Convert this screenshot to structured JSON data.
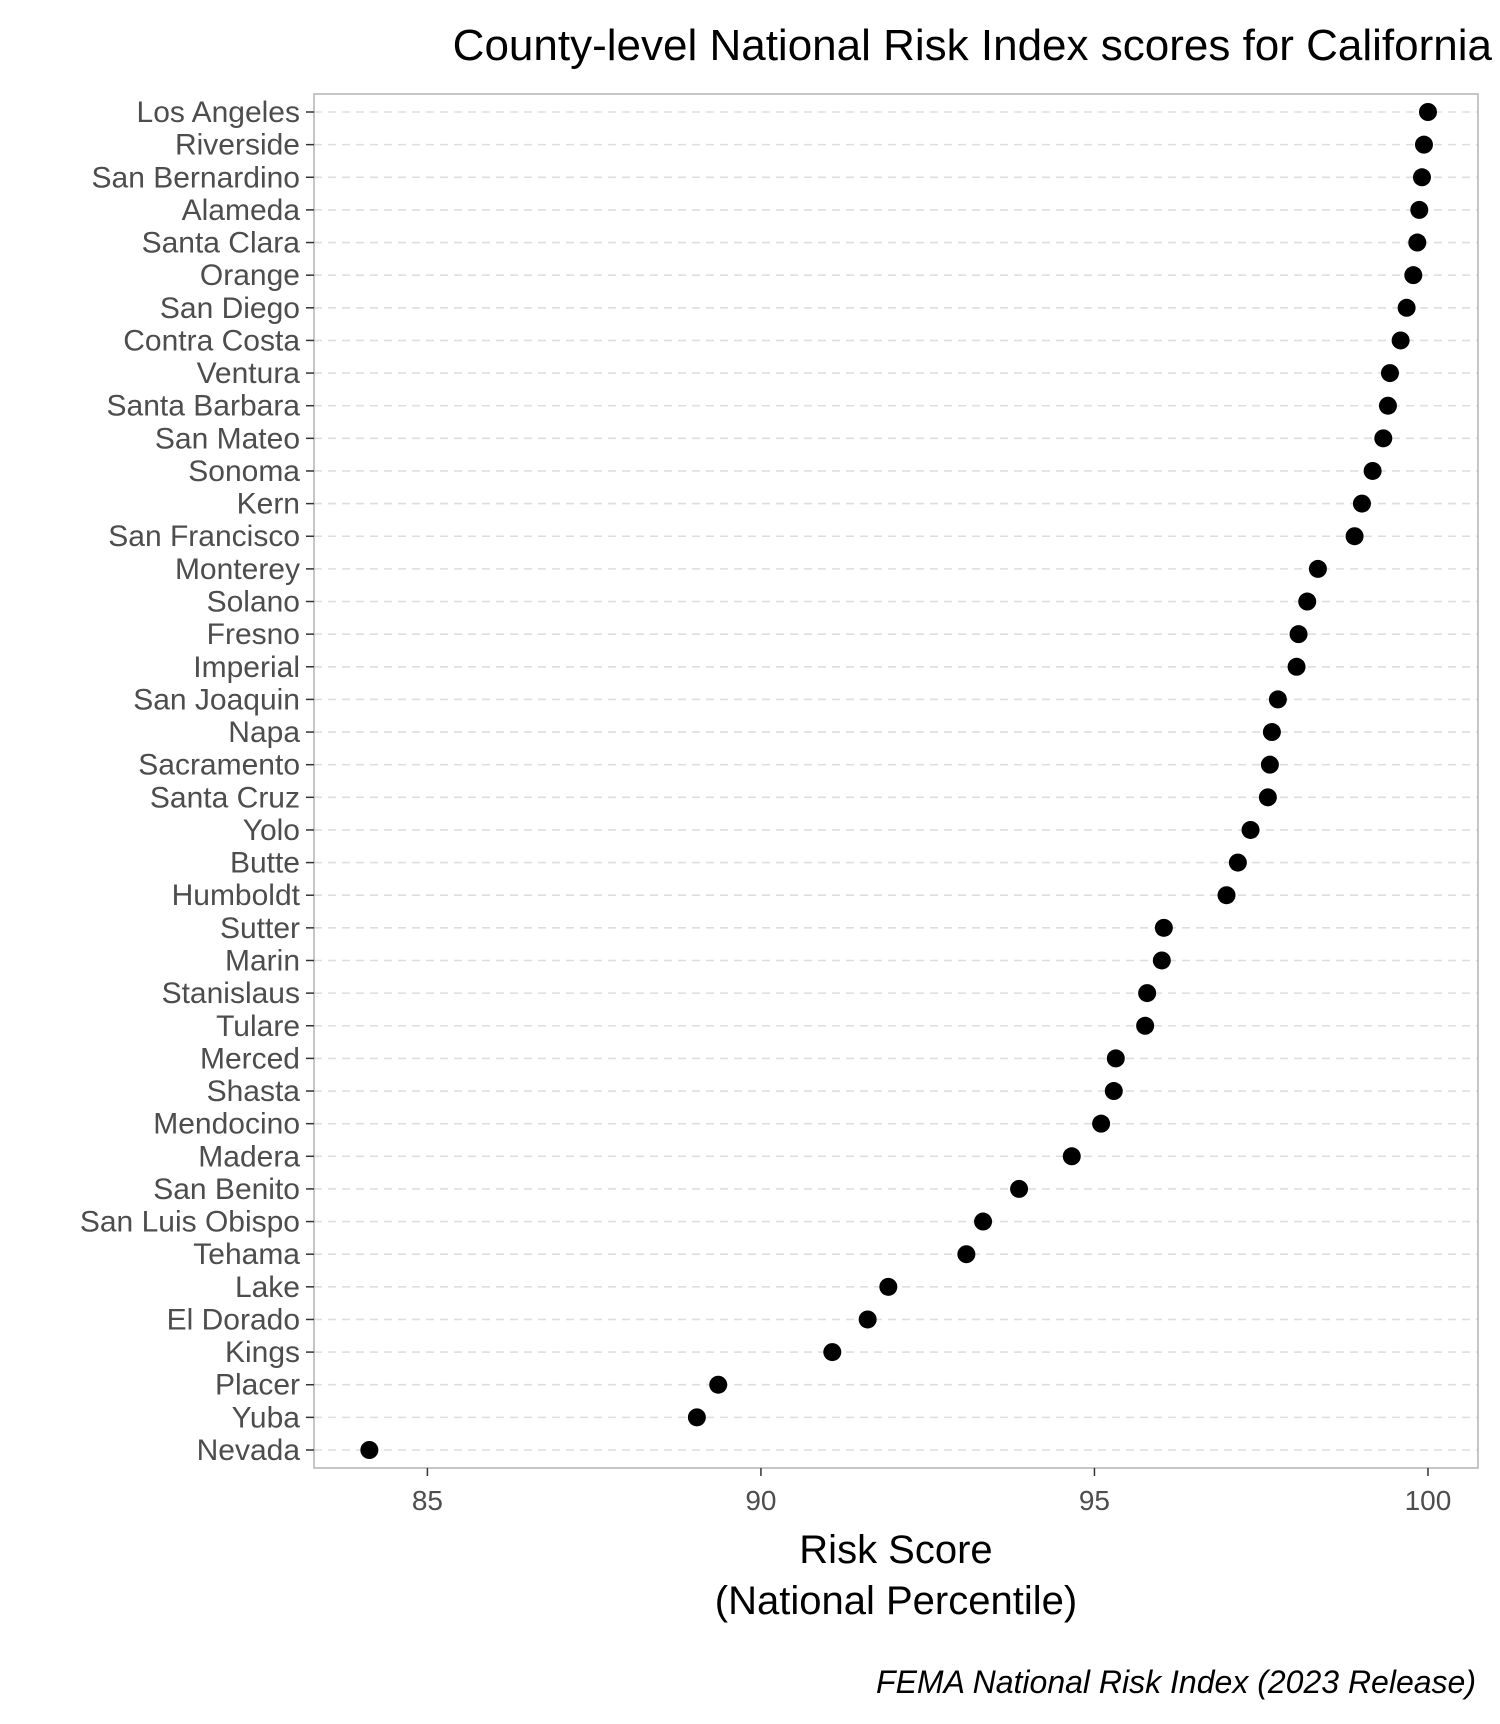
{
  "chart_data": {
    "type": "scatter",
    "title": "County-level National Risk Index scores for California",
    "xlabel_line1": "Risk Score",
    "xlabel_line2": "(National Percentile)",
    "caption": "FEMA National Risk Index (2023 Release)",
    "xlim": [
      83.3,
      100.75
    ],
    "xticks": [
      85,
      90,
      95,
      100
    ],
    "grid": "horizontal dashed",
    "colors": {
      "point": "#000000",
      "panel_border": "#b3b3b3",
      "grid": "#dedede"
    },
    "points": [
      {
        "county": "Los Angeles",
        "value": 100.0
      },
      {
        "county": "Riverside",
        "value": 99.94
      },
      {
        "county": "San Bernardino",
        "value": 99.91
      },
      {
        "county": "Alameda",
        "value": 99.87
      },
      {
        "county": "Santa Clara",
        "value": 99.84
      },
      {
        "county": "Orange",
        "value": 99.78
      },
      {
        "county": "San Diego",
        "value": 99.68
      },
      {
        "county": "Contra Costa",
        "value": 99.59
      },
      {
        "county": "Ventura",
        "value": 99.43
      },
      {
        "county": "Santa Barbara",
        "value": 99.4
      },
      {
        "county": "San Mateo",
        "value": 99.33
      },
      {
        "county": "Sonoma",
        "value": 99.17
      },
      {
        "county": "Kern",
        "value": 99.01
      },
      {
        "county": "San Francisco",
        "value": 98.9
      },
      {
        "county": "Monterey",
        "value": 98.35
      },
      {
        "county": "Solano",
        "value": 98.19
      },
      {
        "county": "Fresno",
        "value": 98.06
      },
      {
        "county": "Imperial",
        "value": 98.03
      },
      {
        "county": "San Joaquin",
        "value": 97.75
      },
      {
        "county": "Napa",
        "value": 97.66
      },
      {
        "county": "Sacramento",
        "value": 97.63
      },
      {
        "county": "Santa Cruz",
        "value": 97.6
      },
      {
        "county": "Yolo",
        "value": 97.34
      },
      {
        "county": "Butte",
        "value": 97.15
      },
      {
        "county": "Humboldt",
        "value": 96.98
      },
      {
        "county": "Sutter",
        "value": 96.04
      },
      {
        "county": "Marin",
        "value": 96.01
      },
      {
        "county": "Stanislaus",
        "value": 95.79
      },
      {
        "county": "Tulare",
        "value": 95.76
      },
      {
        "county": "Merced",
        "value": 95.32
      },
      {
        "county": "Shasta",
        "value": 95.29
      },
      {
        "county": "Mendocino",
        "value": 95.1
      },
      {
        "county": "Madera",
        "value": 94.66
      },
      {
        "county": "San Benito",
        "value": 93.87
      },
      {
        "county": "San Luis Obispo",
        "value": 93.33
      },
      {
        "county": "Tehama",
        "value": 93.08
      },
      {
        "county": "Lake",
        "value": 91.91
      },
      {
        "county": "El Dorado",
        "value": 91.6
      },
      {
        "county": "Kings",
        "value": 91.07
      },
      {
        "county": "Placer",
        "value": 89.36
      },
      {
        "county": "Yuba",
        "value": 89.04
      },
      {
        "county": "Nevada",
        "value": 84.13
      }
    ]
  }
}
